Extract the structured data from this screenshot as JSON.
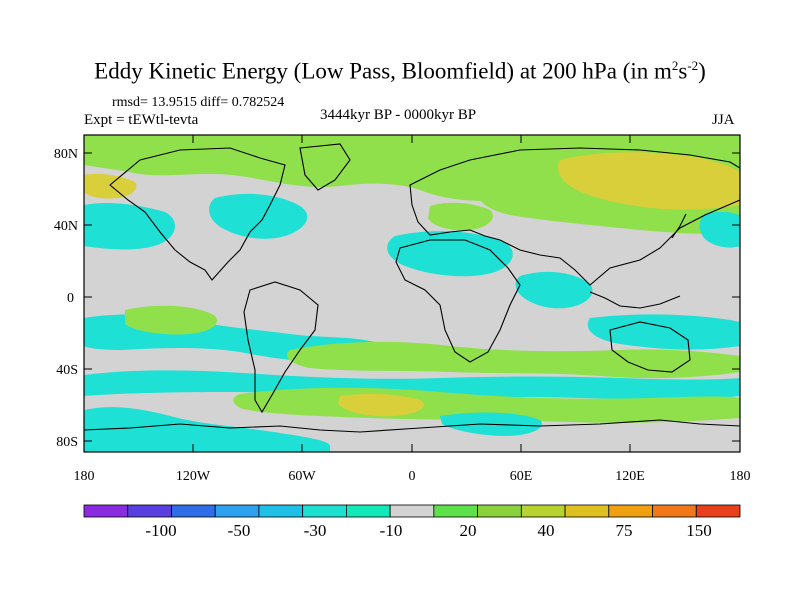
{
  "title": {
    "prefix": "Eddy Kinetic Energy (Low Pass, Bloomfield) at 200 hPa (in m",
    "sup1": "2",
    "mid": "s",
    "sup2": "-2",
    "suffix": ")"
  },
  "stats": "rmsd= 13.9515 diff= 0.782524",
  "experiment": "Expt = tEWtl-tevta",
  "period": "3444kyr BP - 0000kyr BP",
  "season": "JJA",
  "axes": {
    "lat_labels": [
      "80N",
      "40N",
      "0",
      "40S",
      "80S"
    ],
    "lon_labels": [
      "180",
      "120W",
      "60W",
      "0",
      "60E",
      "120E",
      "180"
    ]
  },
  "colorbar": {
    "labels": [
      "-100",
      "-50",
      "-30",
      "-10",
      "20",
      "40",
      "75",
      "150"
    ],
    "colors": [
      "#8a2be2",
      "#5a3fe0",
      "#2f6ee8",
      "#2ea0f0",
      "#1fc0e6",
      "#1ee0d0",
      "#12e8b8",
      "#d3d3d3",
      "#5ee04a",
      "#8ad23c",
      "#b8d230",
      "#e0c020",
      "#eea010",
      "#f07818",
      "#e8401a"
    ]
  },
  "palette": {
    "cyan": "#1fe0d4",
    "green": "#8fe04a",
    "yellow": "#d9cf3a",
    "gray": "#d3d3d3"
  }
}
